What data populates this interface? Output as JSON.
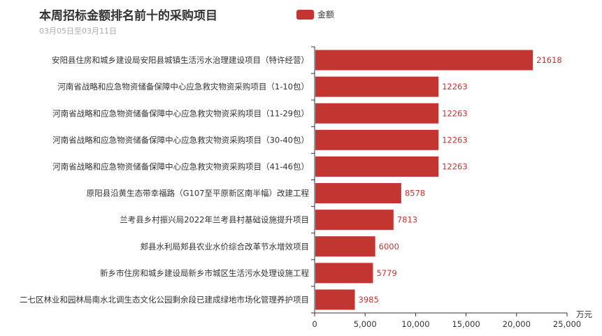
{
  "chart_data": {
    "type": "bar",
    "orientation": "horizontal",
    "title": "本周招标金额排名前十的采购项目",
    "subtitle": "03月05日至03月11日",
    "categories": [
      "安阳县住房和城乡建设局安阳县城镇生活污水治理建设项目（特许经营）",
      "河南省战略和应急物资储备保障中心应急救灾物资采购项目（1-10包）",
      "河南省战略和应急物资储备保障中心应急救灾物资采购项目（11-29包）",
      "河南省战略和应急物资储备保障中心应急救灾物资采购项目（30-40包）",
      "河南省战略和应急物资储备保障中心应急救灾物资采购项目（41-46包）",
      "原阳县沿黄生态带幸福路（G107至平原新区南半幅）改建工程",
      "兰考县乡村振兴局2022年兰考县村基础设施提升项目",
      "郏县水利局郏县农业水价综合改革节水增效项目",
      "新乡市住房和城乡建设局新乡市城区生活污水处理设施工程",
      "二七区林业和园林局南水北调生态文化公园剩余段已建成绿地市场化管理养护项目"
    ],
    "series": [
      {
        "name": "金额",
        "values": [
          21618,
          12263,
          12263,
          12263,
          12263,
          8578,
          7813,
          6000,
          5779,
          3985
        ]
      }
    ],
    "xlim": [
      0,
      25000
    ],
    "x_ticks": [
      "0",
      "5,000",
      "10,000",
      "15,000",
      "20,000",
      "25,000"
    ],
    "x_unit": "万元",
    "grid": false,
    "legend_position": "top",
    "color": "#c23531"
  }
}
